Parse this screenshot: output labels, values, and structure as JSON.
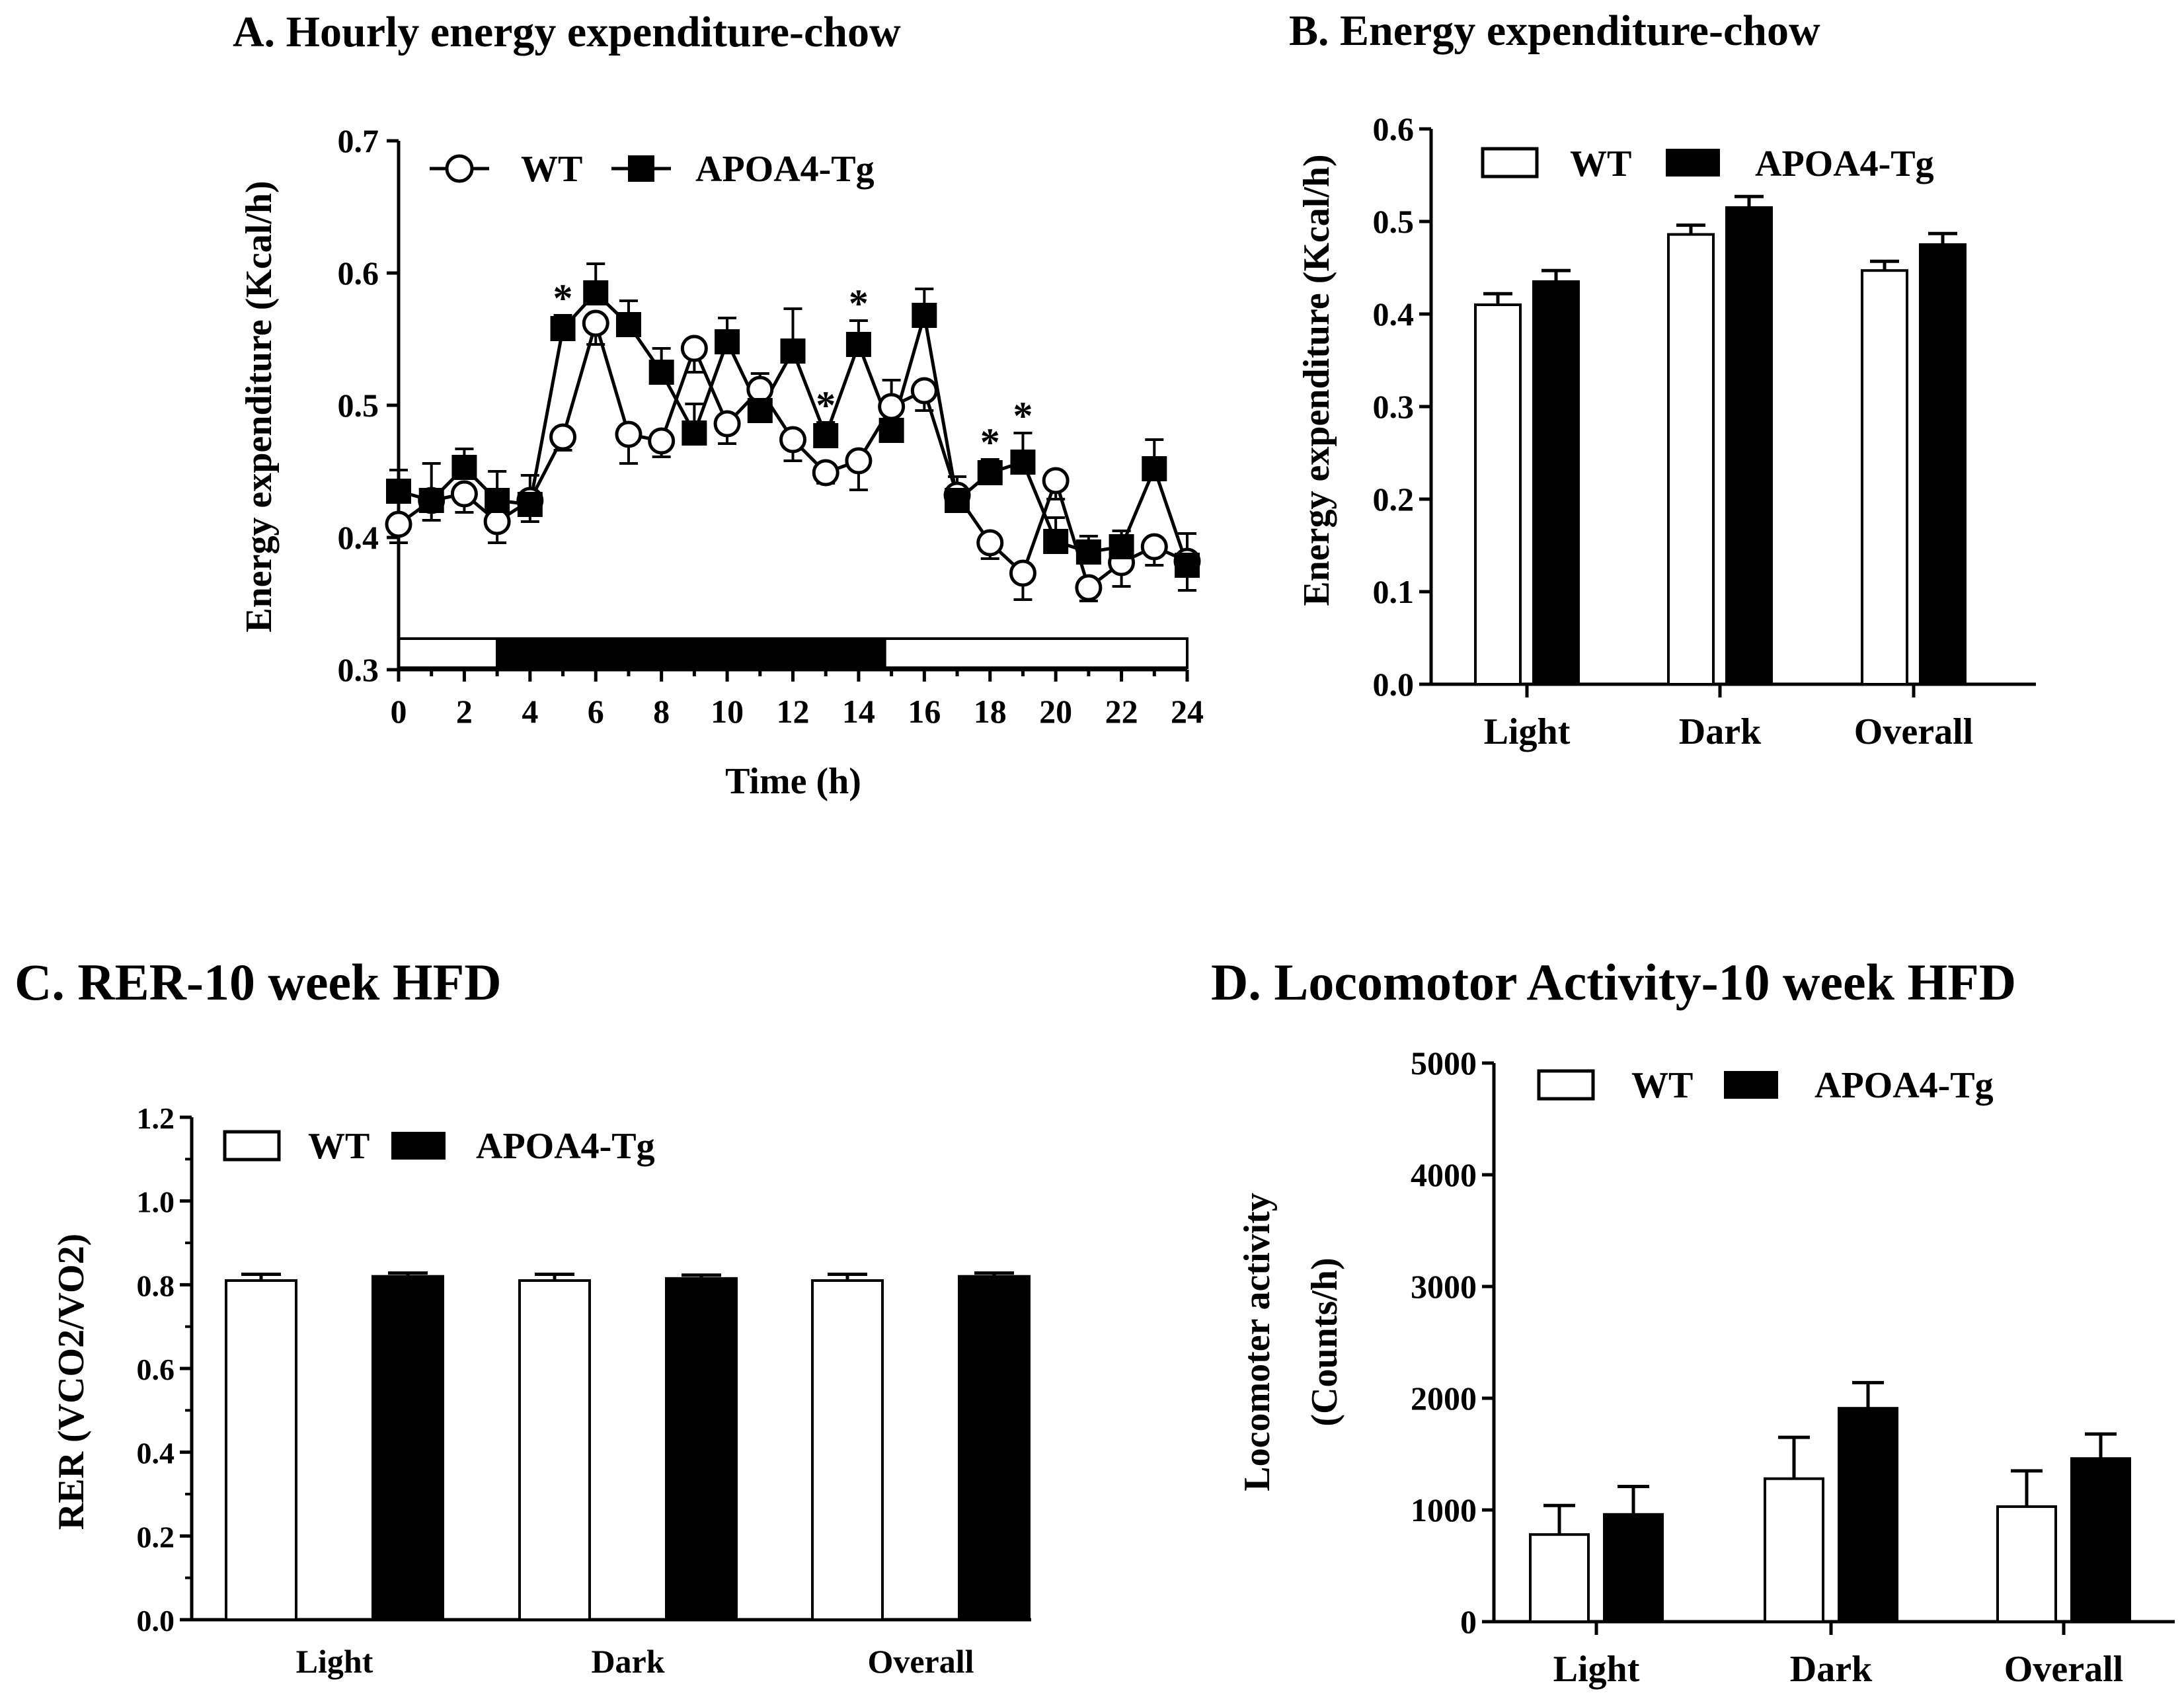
{
  "colors": {
    "wt_fill": "#ffffff",
    "tg_fill": "#000000",
    "stroke": "#000000"
  },
  "chart_data": [
    {
      "id": "A",
      "type": "line",
      "title": "A.  Hourly energy expenditure-chow",
      "xlabel": "Time  (h)",
      "ylabel": "Energy expenditure (Kcal/h)",
      "xlim": [
        0,
        24
      ],
      "ylim": [
        0.3,
        0.7
      ],
      "xticks": [
        "0",
        "2",
        "4",
        "6",
        "8",
        "10",
        "12",
        "14",
        "16",
        "18",
        "20",
        "22",
        "24"
      ],
      "yticks": [
        "0.3",
        "0.4",
        "0.5",
        "0.6",
        "0.7"
      ],
      "x": [
        0,
        1,
        2,
        3,
        4,
        5,
        6,
        7,
        8,
        9,
        10,
        11,
        12,
        13,
        14,
        15,
        16,
        17,
        18,
        19,
        20,
        21,
        22,
        23,
        24
      ],
      "series": [
        {
          "name": "WT",
          "marker": "open-circle",
          "values": [
            0.41,
            0.428,
            0.433,
            0.412,
            0.428,
            0.476,
            0.562,
            0.478,
            0.473,
            0.543,
            0.486,
            0.512,
            0.474,
            0.449,
            0.458,
            0.499,
            0.511,
            0.432,
            0.396,
            0.373,
            0.443,
            0.362,
            0.381,
            0.393,
            0.382
          ],
          "errors": [
            0.014,
            0.015,
            0.014,
            0.016,
            0.016,
            0.01,
            0.016,
            0.022,
            0.012,
            0.018,
            0.015,
            0.01,
            0.016,
            0.008,
            0.022,
            0.015,
            0.015,
            0.012,
            0.012,
            0.02,
            0.014,
            0.01,
            0.018,
            0.014,
            0.022
          ]
        },
        {
          "name": "APOA4-Tg",
          "marker": "filled-square",
          "values": [
            0.435,
            0.428,
            0.453,
            0.428,
            0.425,
            0.558,
            0.585,
            0.561,
            0.525,
            0.479,
            0.548,
            0.496,
            0.541,
            0.477,
            0.546,
            0.481,
            0.568,
            0.428,
            0.449,
            0.457,
            0.397,
            0.389,
            0.393,
            0.452,
            0.379
          ],
          "errors": [
            0.016,
            0.028,
            0.014,
            0.022,
            0.022,
            0.01,
            0.022,
            0.018,
            0.018,
            0.022,
            0.018,
            0.028,
            0.032,
            0.01,
            0.018,
            0.038,
            0.02,
            0.018,
            0.01,
            0.022,
            0.018,
            0.012,
            0.012,
            0.022,
            0.024
          ]
        }
      ],
      "significance": [
        {
          "x": 5,
          "label": "*"
        },
        {
          "x": 13,
          "label": "*"
        },
        {
          "x": 14,
          "label": "*"
        },
        {
          "x": 18,
          "label": "*"
        },
        {
          "x": 19,
          "label": "*"
        }
      ],
      "light_dark_bar": [
        {
          "from": 0,
          "to": 3,
          "phase": "light"
        },
        {
          "from": 3,
          "to": 14.8,
          "phase": "dark"
        },
        {
          "from": 14.8,
          "to": 24,
          "phase": "light"
        }
      ],
      "legend": [
        "WT",
        "APOA4-Tg"
      ],
      "legend_position": "top-left"
    },
    {
      "id": "B",
      "type": "bar",
      "title": "B.  Energy expenditure-chow",
      "xlabel": "",
      "ylabel": "Energy expenditure (Kcal/h)",
      "ylim": [
        0.0,
        0.6
      ],
      "yticks": [
        "0.0",
        "0.1",
        "0.2",
        "0.3",
        "0.4",
        "0.5",
        "0.6"
      ],
      "categories": [
        "Light",
        "Dark",
        "Overall"
      ],
      "series": [
        {
          "name": "WT",
          "values": [
            0.41,
            0.486,
            0.447
          ],
          "errors": [
            0.012,
            0.01,
            0.01
          ]
        },
        {
          "name": "APOA4-Tg",
          "values": [
            0.435,
            0.515,
            0.475
          ],
          "errors": [
            0.012,
            0.012,
            0.012
          ]
        }
      ],
      "legend": [
        "WT",
        "APOA4-Tg"
      ],
      "legend_position": "top"
    },
    {
      "id": "C",
      "type": "bar",
      "title": "C. RER-10 week HFD",
      "xlabel": "",
      "ylabel": "RER (VCO2/VO2)",
      "ylim": [
        0.0,
        1.2
      ],
      "yticks": [
        "0.0",
        "0.2",
        "0.4",
        "0.6",
        "0.8",
        "1.0",
        "1.2"
      ],
      "categories": [
        "Light",
        "Dark",
        "Overall"
      ],
      "series": [
        {
          "name": "WT",
          "values": [
            0.81,
            0.81,
            0.81
          ],
          "errors": [
            0.015,
            0.015,
            0.015
          ]
        },
        {
          "name": "APOA4-Tg",
          "values": [
            0.82,
            0.815,
            0.82
          ],
          "errors": [
            0.008,
            0.008,
            0.008
          ]
        }
      ],
      "legend": [
        "WT",
        "APOA4-Tg"
      ],
      "legend_position": "top"
    },
    {
      "id": "D",
      "type": "bar",
      "title": "D. Locomotor Activity-10 week HFD",
      "xlabel": "",
      "ylabel_lines": [
        "Locomoter activity",
        "(Counts/h)"
      ],
      "ylim": [
        0,
        5000
      ],
      "yticks": [
        "0",
        "1000",
        "2000",
        "3000",
        "4000",
        "5000"
      ],
      "categories": [
        "Light",
        "Dark",
        "Overall"
      ],
      "series": [
        {
          "name": "WT",
          "values": [
            780,
            1280,
            1030
          ],
          "errors": [
            260,
            370,
            320
          ]
        },
        {
          "name": "APOA4-Tg",
          "values": [
            960,
            1910,
            1460
          ],
          "errors": [
            250,
            230,
            220
          ]
        }
      ],
      "legend": [
        "WT",
        "APOA4-Tg"
      ],
      "legend_position": "top"
    }
  ]
}
